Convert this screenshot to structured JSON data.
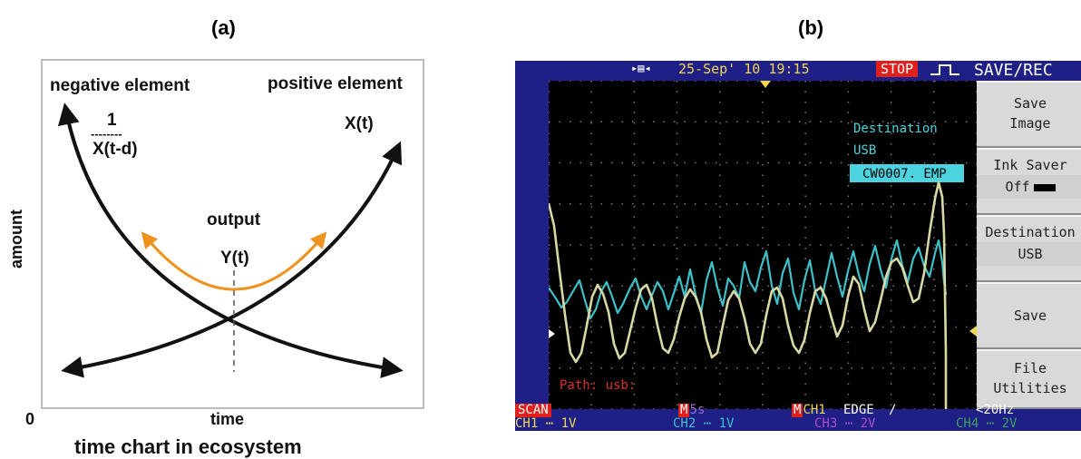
{
  "panel_a": {
    "label": "(a)",
    "negative_element": "negative element",
    "positive_element": "positive element",
    "inverse_numerator": "1",
    "inverse_dashes": "--------",
    "inverse_denominator": "X(t-d)",
    "x_t": "X(t)",
    "output": "output",
    "y_t": "Y(t)",
    "y_axis_label": "amount",
    "x_axis_label": "time",
    "origin_label": "0",
    "caption": "time chart in ecosystem",
    "colors": {
      "curves": "#111111",
      "output_curve": "#f0921e"
    }
  },
  "panel_b": {
    "label": "(b)",
    "date_time": "25-Sep' 10 19:15",
    "stop": "STOP",
    "menu_title": "SAVE/REC",
    "menu": {
      "save_image_1": "Save",
      "save_image_2": "Image",
      "ink_saver": "Ink Saver",
      "ink_saver_value": "Off",
      "destination": "Destination",
      "destination_value": "USB",
      "save": "Save",
      "file_utilities_1": "File",
      "file_utilities_2": "Utilities"
    },
    "overlay": {
      "destination": "Destination",
      "destination_value": "USB",
      "filename": "CW0007. EMP",
      "path": "Path: usb:"
    },
    "status": {
      "scan": "SCAN",
      "m_box": "M",
      "timebase": "5s",
      "trigger_source": "CH1",
      "trigger_type": "EDGE",
      "trigger_slope": "∕",
      "freq": "<20Hz",
      "ch1_label": "CH1",
      "ch1_scale": "1V",
      "ch2_label": "CH2",
      "ch2_scale": "1V",
      "ch3_label": "CH3",
      "ch3_scale": "2V",
      "ch4_label": "CH4",
      "ch4_scale": "2V"
    },
    "colors": {
      "background": "#1e1f87",
      "screen": "#000000",
      "trace_ch1": "#d9d8a4",
      "trace_ch2": "#3cc1c8",
      "date": "#f4d64d",
      "stop": "#e0201c",
      "cyan_text": "#4bd3df",
      "ch3": "#b048c8",
      "ch4": "#3aa35a"
    }
  }
}
